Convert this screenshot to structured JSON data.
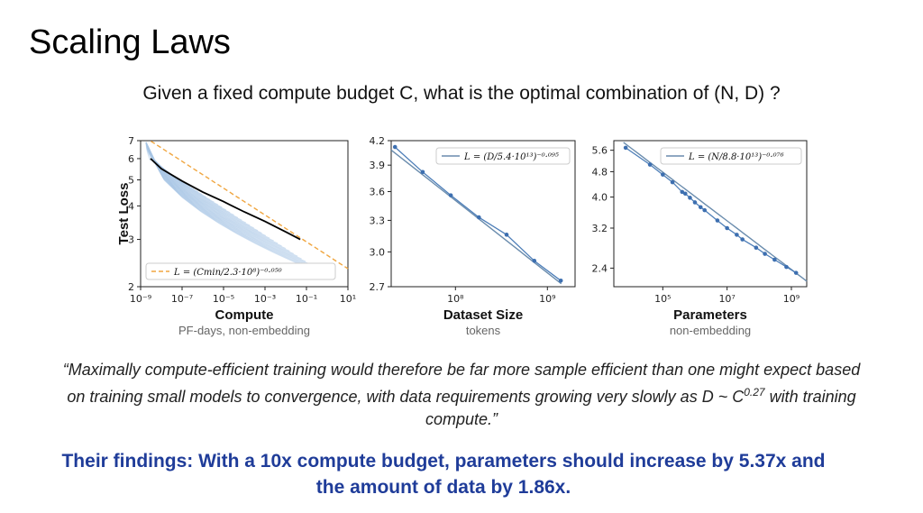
{
  "slide": {
    "title": "Scaling Laws",
    "subtitle": "Given a fixed compute budget C, what is the optimal combination of (N, D) ?",
    "quote_part1": "“Maximally compute-efficient training would therefore be far more sample efficient than one might expect based on training small models to convergence, with data requirements growing very slowly as D ~ C",
    "quote_exponent": "0.27",
    "quote_part2": " with training compute.”",
    "findings": "Their findings: With a 10x compute budget, parameters should increase by 5.37x and the amount of data by 1.86x."
  },
  "colors": {
    "curve_light": "#aac6e6",
    "fit_line": "#4d7eb8",
    "point": "#3d6fb0",
    "frontier": "#000000",
    "dashed_fit": "#f0a640",
    "findings": "#1f3c99"
  },
  "chart_data": [
    {
      "type": "line",
      "name": "compute",
      "ylabel": "Test Loss",
      "xlabel": "Compute",
      "xsub": "PF-days, non-embedding",
      "xscale": "log",
      "yscale": "log",
      "xlim": [
        1e-09,
        10
      ],
      "ylim": [
        2,
        7
      ],
      "x_tick_labels": [
        "10⁻⁹",
        "10⁻⁷",
        "10⁻⁵",
        "10⁻³",
        "10⁻¹",
        "10¹"
      ],
      "y_tick_labels": [
        "2",
        "3",
        "4",
        "5",
        "6",
        "7"
      ],
      "legend": "L = (Cmin/2.3·10⁸)⁻⁰·⁰⁵⁰",
      "legend_position": "bottom-left",
      "fit": {
        "c": 230000000.0,
        "alpha": 0.05
      },
      "frontier": {
        "x": [
          3e-09,
          1e-08,
          1e-07,
          1e-06,
          1e-05,
          0.0001,
          0.001,
          0.01,
          0.05
        ],
        "y": [
          6.0,
          5.5,
          4.95,
          4.5,
          4.15,
          3.8,
          3.5,
          3.2,
          3.0
        ]
      }
    },
    {
      "type": "scatter",
      "name": "dataset",
      "xlabel": "Dataset Size",
      "xsub": "tokens",
      "xscale": "log",
      "yscale": "log",
      "xlim": [
        20000000.0,
        2000000000.0
      ],
      "ylim": [
        2.7,
        4.2
      ],
      "x_tick_labels": [
        "10⁸",
        "10⁹"
      ],
      "y_tick_labels": [
        "2.7",
        "3.0",
        "3.3",
        "3.6",
        "3.9",
        "4.2"
      ],
      "legend": "L = (D/5.4·10¹³)⁻⁰·⁰⁹⁵",
      "legend_position": "top-right",
      "fit": {
        "c": 54000000000000.0,
        "alpha": 0.095
      },
      "x": [
        22000000.0,
        44000000.0,
        89000000.0,
        180000000.0,
        360000000.0,
        720000000.0,
        1400000000.0
      ],
      "y": [
        4.12,
        3.82,
        3.56,
        3.33,
        3.16,
        2.92,
        2.75
      ]
    },
    {
      "type": "scatter",
      "name": "parameters",
      "xlabel": "Parameters",
      "xsub": "non-embedding",
      "xscale": "log",
      "yscale": "log",
      "xlim": [
        3000.0,
        3000000000.0
      ],
      "ylim": [
        2.1,
        6.0
      ],
      "x_tick_labels": [
        "10⁵",
        "10⁷",
        "10⁹"
      ],
      "y_tick_labels": [
        "2.4",
        "3.2",
        "4.0",
        "4.8",
        "5.6"
      ],
      "legend": "L = (N/8.8·10¹³)⁻⁰·⁰⁷⁶",
      "legend_position": "top-right",
      "fit": {
        "c": 88000000000000.0,
        "alpha": 0.076
      },
      "x": [
        7000.0,
        40000.0,
        100000.0,
        200000.0,
        400000.0,
        500000.0,
        700000.0,
        1000000.0,
        1500000.0,
        2000000.0,
        5000000.0,
        10000000.0,
        20000000.0,
        30000000.0,
        80000000.0,
        150000000.0,
        300000000.0,
        700000000.0,
        1400000000.0
      ],
      "y": [
        5.7,
        5.05,
        4.7,
        4.45,
        4.15,
        4.1,
        3.98,
        3.85,
        3.72,
        3.64,
        3.38,
        3.2,
        3.05,
        2.95,
        2.78,
        2.66,
        2.55,
        2.42,
        2.32
      ]
    }
  ]
}
